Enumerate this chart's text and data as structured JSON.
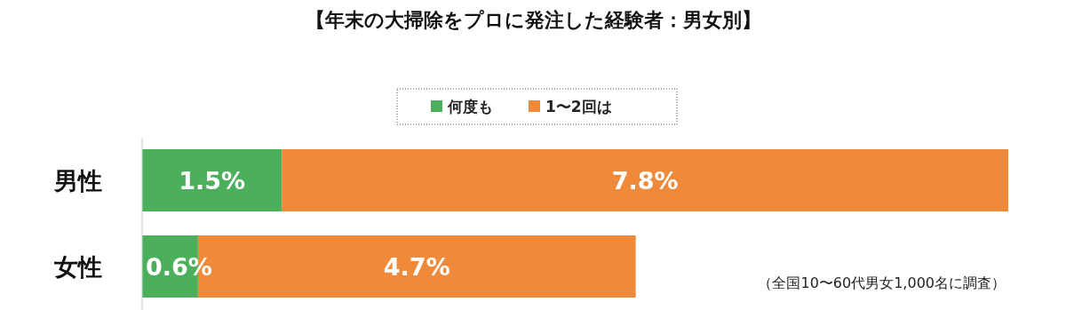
{
  "chart_data": {
    "type": "bar",
    "orientation": "horizontal",
    "stacked": true,
    "title": "【年末の大掃除をプロに発注した経験者：男女別】",
    "categories": [
      "男性",
      "女性"
    ],
    "series": [
      {
        "name": "何度も",
        "color": "#4caf5c",
        "values": [
          1.5,
          0.6
        ],
        "value_labels": [
          "1.5%",
          "0.6%"
        ]
      },
      {
        "name": "1〜2回は",
        "color": "#ef8a3a",
        "values": [
          7.8,
          4.7
        ],
        "value_labels": [
          "7.8%",
          "4.7%"
        ]
      }
    ],
    "legend": "top",
    "annotations": [
      "（全国10〜60代男女1,000名に調査）"
    ]
  }
}
